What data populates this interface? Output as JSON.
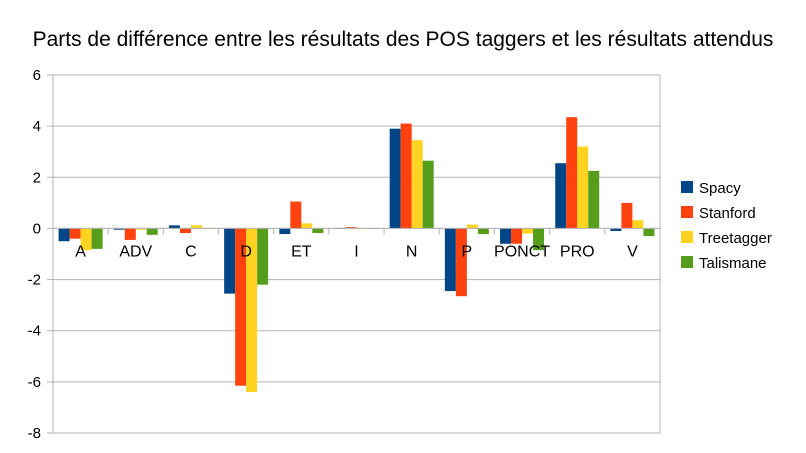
{
  "chart_data": {
    "type": "bar",
    "title": "Parts de différence entre les résultats des POS taggers et les résultats attendus",
    "xlabel": "",
    "ylabel": "",
    "categories": [
      "A",
      "ADV",
      "C",
      "D",
      "ET",
      "I",
      "N",
      "P",
      "PONCT",
      "PRO",
      "V"
    ],
    "ylim": [
      -8,
      6
    ],
    "yticks": [
      -8,
      -6,
      -4,
      -2,
      0,
      2,
      4,
      6
    ],
    "grid": true,
    "legend_position": "right",
    "series": [
      {
        "name": "Spacy",
        "color": "#004586",
        "values": [
          -0.5,
          -0.05,
          0.12,
          -2.55,
          -0.22,
          0.0,
          3.9,
          -2.45,
          -0.6,
          2.55,
          -0.1
        ]
      },
      {
        "name": "Stanford",
        "color": "#ff420e",
        "values": [
          -0.4,
          -0.45,
          -0.18,
          -6.15,
          1.05,
          0.05,
          4.1,
          -2.65,
          -0.6,
          4.35,
          1.0
        ]
      },
      {
        "name": "Treetagger",
        "color": "#ffd320",
        "values": [
          -0.85,
          -0.05,
          0.12,
          -6.4,
          0.2,
          0.0,
          3.45,
          0.15,
          -0.2,
          3.2,
          0.32
        ]
      },
      {
        "name": "Talismane",
        "color": "#579d1c",
        "values": [
          -0.8,
          -0.25,
          0.0,
          -2.2,
          -0.18,
          0.0,
          2.65,
          -0.22,
          -0.85,
          2.25,
          -0.3
        ]
      }
    ]
  }
}
